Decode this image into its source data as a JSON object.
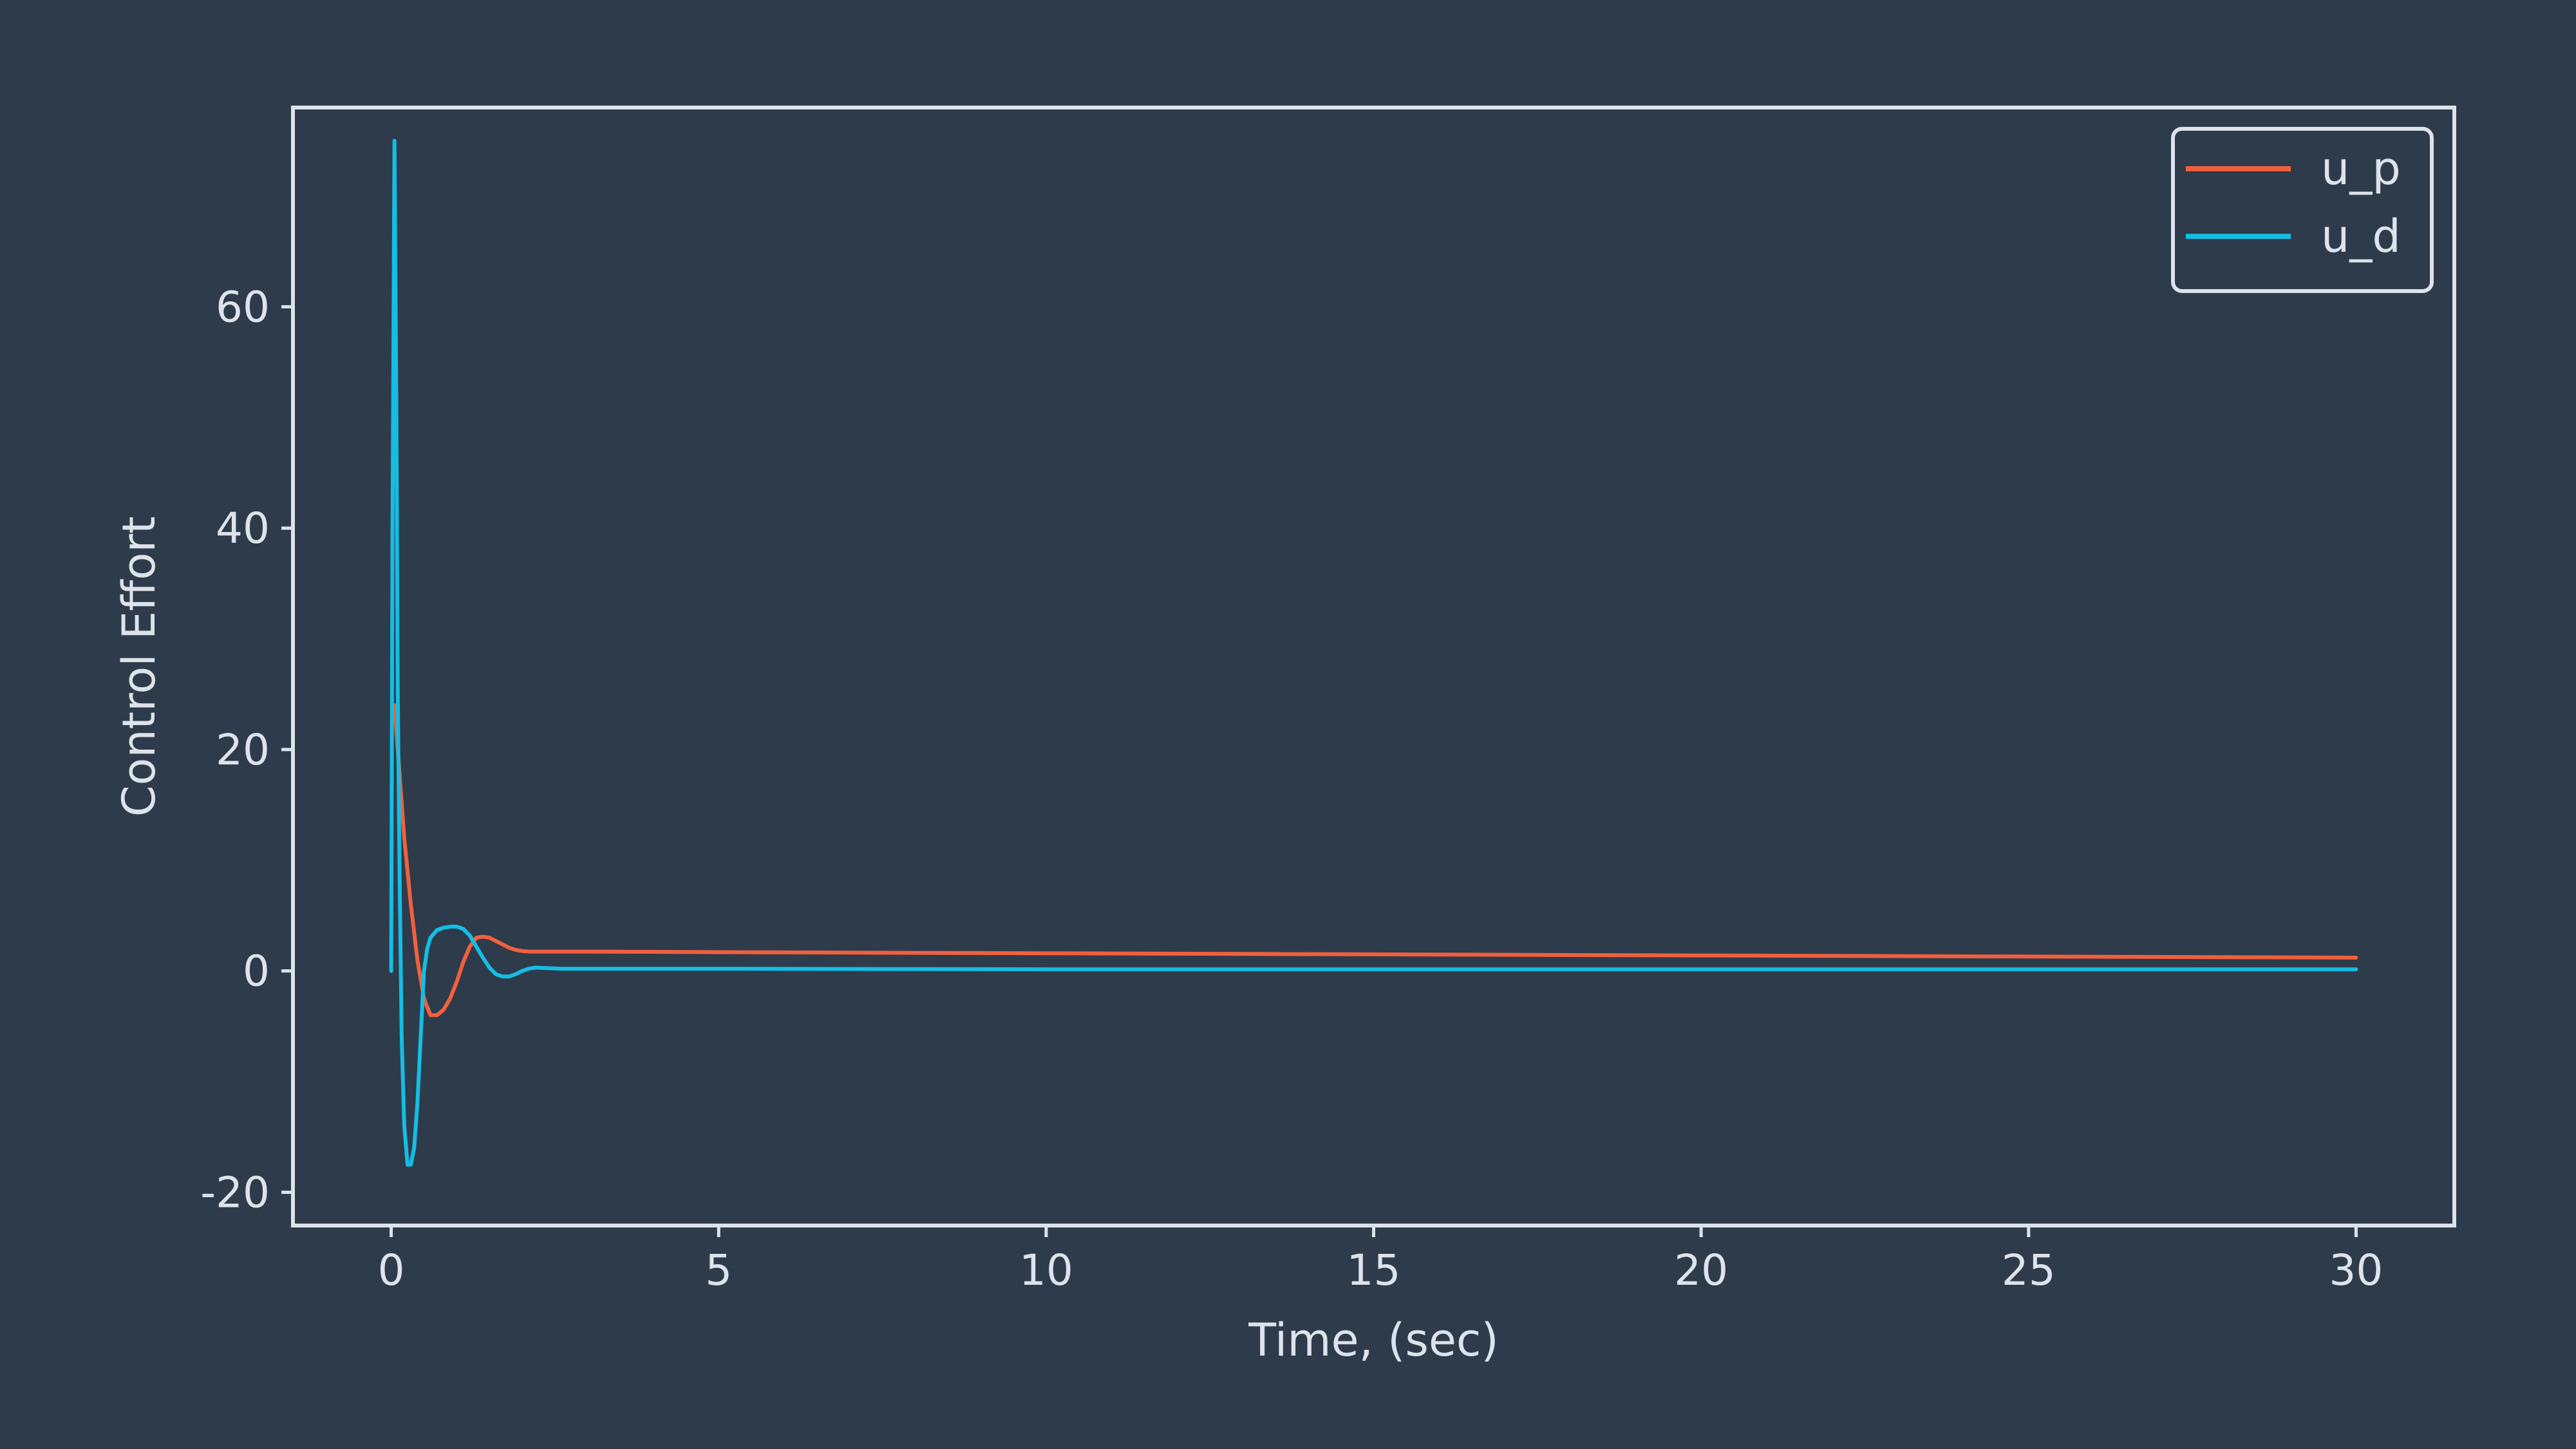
{
  "chart_data": {
    "type": "line",
    "xlabel": "Time, (sec)",
    "ylabel": "Control Effort",
    "xlim": [
      -1.5,
      31.5
    ],
    "ylim": [
      -23,
      78
    ],
    "xticks": [
      0,
      5,
      10,
      15,
      20,
      25,
      30
    ],
    "yticks": [
      -20,
      0,
      20,
      40,
      60
    ],
    "grid": false,
    "legend_position": "top-right",
    "colors": {
      "background": "#2e3b4a",
      "axes": "#dde3ea",
      "text": "#dde3ea"
    },
    "series": [
      {
        "name": "u_p",
        "color": "#f0603e",
        "x": [
          0.05,
          0.1,
          0.2,
          0.3,
          0.4,
          0.5,
          0.6,
          0.7,
          0.8,
          0.9,
          1.0,
          1.1,
          1.2,
          1.3,
          1.4,
          1.5,
          1.6,
          1.7,
          1.8,
          1.9,
          2.0,
          2.1,
          2.2,
          2.4,
          2.6,
          3.0,
          5,
          10,
          15,
          20,
          25,
          30
        ],
        "y": [
          24,
          20,
          12,
          6,
          1,
          -2.5,
          -4,
          -4,
          -3.5,
          -2.5,
          -1,
          0.8,
          2.2,
          3,
          3.1,
          3,
          2.7,
          2.4,
          2.1,
          1.9,
          1.8,
          1.75,
          1.75,
          1.75,
          1.75,
          1.75,
          1.7,
          1.6,
          1.5,
          1.4,
          1.3,
          1.2
        ]
      },
      {
        "name": "u_d",
        "color": "#15bde3",
        "x": [
          0,
          0.02,
          0.05,
          0.08,
          0.1,
          0.13,
          0.16,
          0.2,
          0.25,
          0.3,
          0.35,
          0.4,
          0.45,
          0.5,
          0.55,
          0.6,
          0.7,
          0.8,
          0.9,
          1.0,
          1.1,
          1.2,
          1.3,
          1.4,
          1.5,
          1.6,
          1.7,
          1.8,
          1.9,
          2.0,
          2.1,
          2.2,
          2.4,
          2.6,
          2.8,
          3.0,
          5,
          10,
          15,
          20,
          25,
          30
        ],
        "y": [
          0,
          40,
          75,
          50,
          25,
          8,
          -6,
          -14,
          -17.5,
          -17.5,
          -16,
          -12,
          -6,
          0,
          2,
          3,
          3.7,
          3.9,
          4,
          4,
          3.8,
          3.2,
          2.2,
          1.2,
          0.3,
          -0.3,
          -0.5,
          -0.5,
          -0.3,
          0,
          0.2,
          0.3,
          0.25,
          0.2,
          0.2,
          0.2,
          0.2,
          0.15,
          0.15,
          0.15,
          0.15,
          0.15
        ]
      }
    ]
  }
}
